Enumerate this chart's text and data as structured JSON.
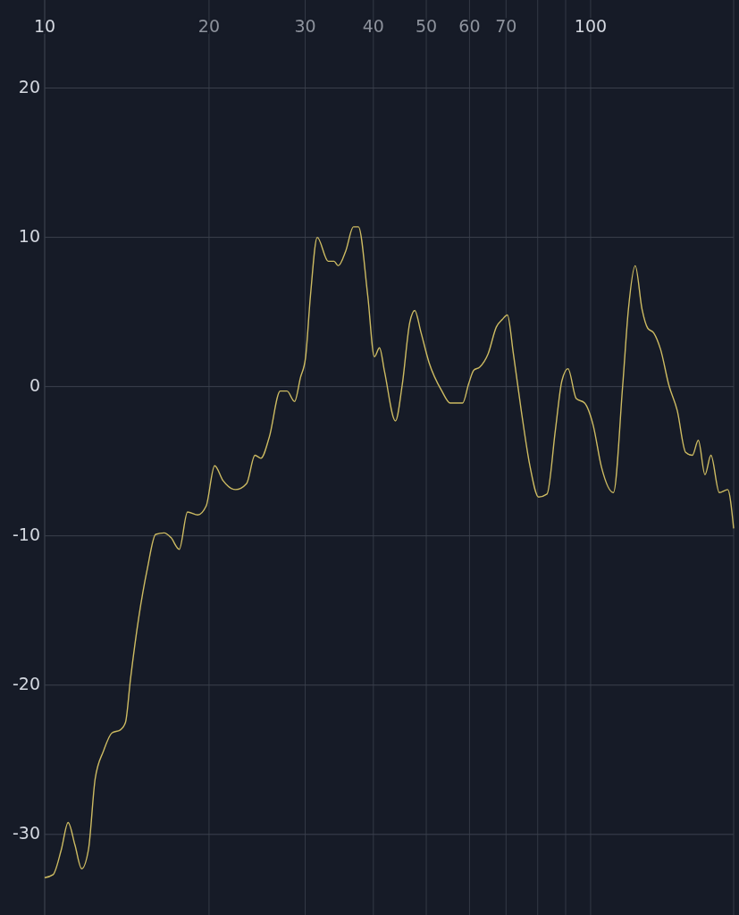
{
  "chart_data": {
    "type": "line",
    "log": "x",
    "grid": true,
    "marker": "none",
    "line_style": "solid",
    "xlim": [
      10,
      182.8
    ],
    "ylim": [
      -35.4,
      25.9
    ],
    "xticks": [
      10,
      20,
      30,
      40,
      50,
      60,
      70,
      {
        "value": 80,
        "label": null
      },
      {
        "value": 90,
        "label": null
      },
      100
    ],
    "yticks": [
      -30,
      -20,
      -10,
      0,
      10,
      20
    ],
    "x": [
      10,
      10.36,
      10.73,
      11.04,
      11.36,
      11.69,
      12.03,
      12.37,
      12.82,
      13.28,
      13.76,
      14.06,
      14.36,
      14.88,
      15.42,
      15.97,
      16.55,
      17.02,
      17.64,
      18.27,
      19.07,
      19.76,
      20.48,
      21.22,
      22.38,
      23.43,
      24.28,
      24.89,
      25.78,
      27.01,
      27.79,
      28.69,
      29.41,
      30.04,
      30.68,
      31.57,
      33.06,
      33.88,
      34.49,
      35.61,
      36.77,
      37.56,
      39.06,
      40.18,
      41.05,
      41.93,
      43.91,
      45.17,
      46.64,
      47.64,
      48.84,
      50.6,
      53.4,
      55.3,
      58.3,
      59.8,
      61.1,
      62.6,
      64.9,
      67.2,
      68.9,
      70.4,
      72.2,
      74.7,
      77.4,
      80.3,
      83.2,
      86.2,
      88.6,
      90.9,
      94.1,
      97.5,
      101.1,
      104.7,
      110.1,
      114.5,
      117.3,
      120.7,
      124.2,
      127.3,
      130.5,
      134.3,
      139.1,
      144.1,
      149.3,
      153.6,
      157.5,
      162.0,
      166.1,
      172.1,
      178.3,
      182.8
    ],
    "series": [
      {
        "color": "#cdbb62",
        "values": [
          -32.9,
          -32.7,
          -31.0,
          -29.2,
          -30.7,
          -32.3,
          -31.0,
          -26.3,
          -24.4,
          -23.2,
          -23.0,
          -22.5,
          -19.6,
          -15.4,
          -12.2,
          -9.9,
          -9.8,
          -10.1,
          -10.9,
          -8.4,
          -8.6,
          -8.0,
          -5.3,
          -6.3,
          -6.9,
          -6.5,
          -4.6,
          -4.8,
          -3.4,
          -0.3,
          -0.3,
          -1.0,
          0.6,
          1.9,
          6.1,
          10.0,
          8.4,
          8.4,
          8.1,
          9.1,
          10.7,
          10.7,
          6.1,
          2.0,
          2.6,
          1.0,
          -2.3,
          0.1,
          4.3,
          5.1,
          3.7,
          1.6,
          -0.3,
          -1.1,
          -1.1,
          0.2,
          1.1,
          1.3,
          2.2,
          4.0,
          4.5,
          4.8,
          2.2,
          -1.7,
          -5.3,
          -7.4,
          -7.2,
          -2.9,
          0.4,
          1.2,
          -0.8,
          -1.1,
          -2.6,
          -5.4,
          -7.1,
          0.1,
          5.2,
          8.1,
          5.2,
          3.9,
          3.6,
          2.5,
          0.1,
          -1.6,
          -4.4,
          -4.6,
          -3.6,
          -5.9,
          -4.6,
          -7.1,
          -6.9,
          -9.5
        ]
      }
    ]
  }
}
